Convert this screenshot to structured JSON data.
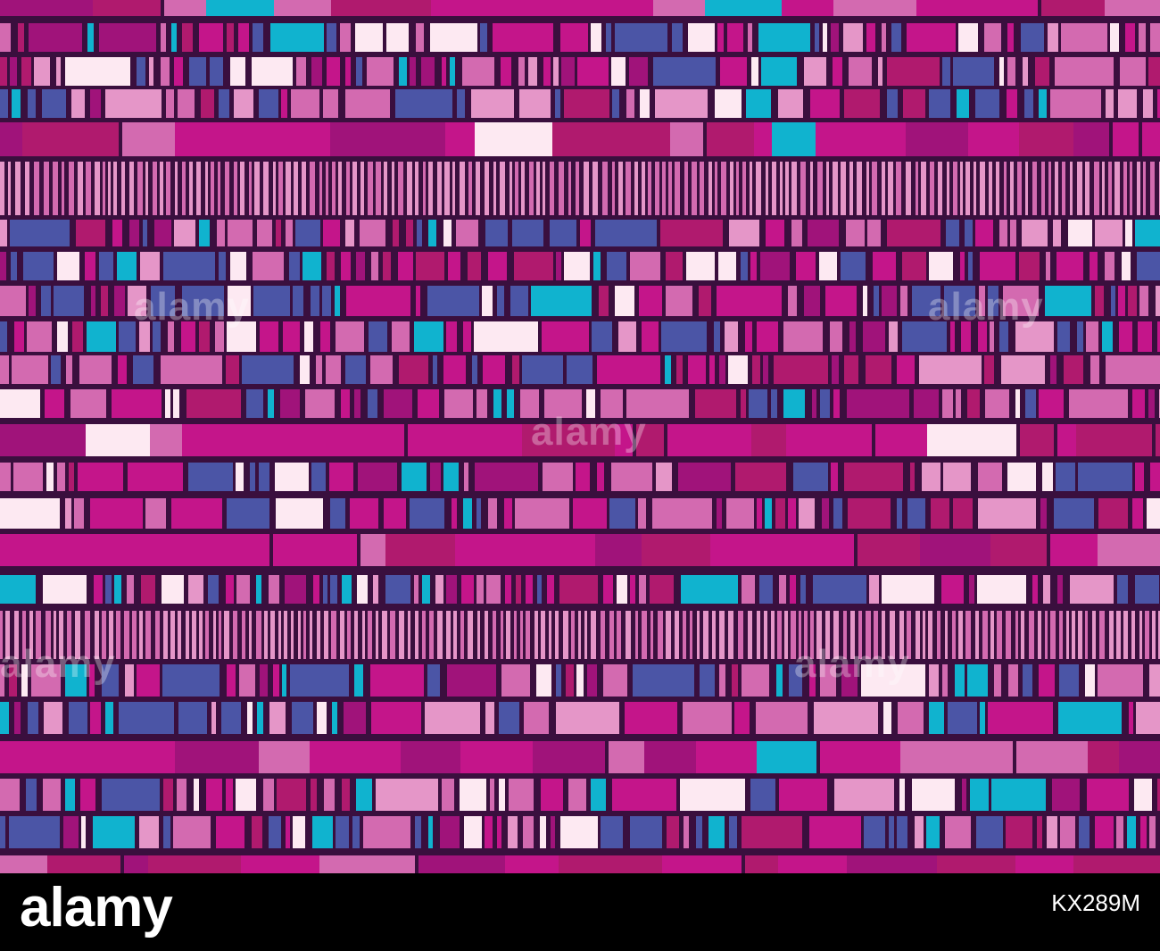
{
  "artwork": {
    "description_colors": {
      "background": "#3a0f3e",
      "magenta": "#c4158a",
      "dark_magenta": "#a0137a",
      "pink": "#d36ab0",
      "light_pink": "#e596c8",
      "blue": "#4b55a6",
      "cyan": "#10b3cf",
      "white": "#fde9f2",
      "deep_rose": "#b01a6e"
    }
  },
  "watermark": {
    "text": "alamy"
  },
  "footer": {
    "logo_text": "alamy",
    "image_id": "KX289M"
  }
}
